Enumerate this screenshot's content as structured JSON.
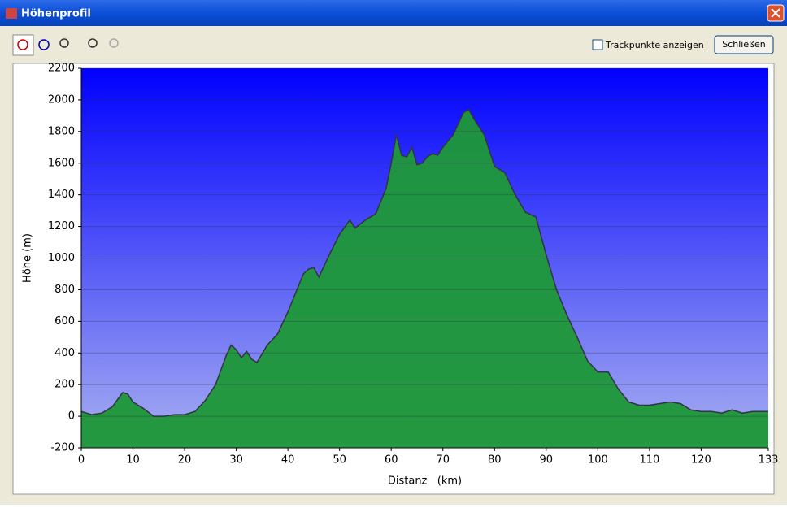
{
  "window": {
    "title": "Höhenprofil",
    "checkbox_label": "Trackpunkte anzeigen",
    "button": "Schließen"
  },
  "chart_data": {
    "type": "area",
    "x_label": "Distanz   (km)",
    "y_label": "Höhe (m)",
    "x": [
      0,
      2,
      4,
      6,
      8,
      9,
      10,
      12,
      14,
      16,
      18,
      20,
      22,
      24,
      26,
      28,
      29,
      30,
      31,
      32,
      33,
      34,
      36,
      38,
      40,
      42,
      43,
      44,
      45,
      46,
      48,
      50,
      52,
      53,
      55,
      57,
      59,
      60,
      61,
      62,
      63,
      64,
      65,
      66,
      67,
      68,
      69,
      70,
      72,
      74,
      75,
      76,
      78,
      80,
      82,
      84,
      86,
      88,
      90,
      92,
      94,
      96,
      98,
      100,
      102,
      104,
      106,
      108,
      110,
      112,
      114,
      116,
      118,
      120,
      122,
      124,
      126,
      128,
      130,
      133
    ],
    "values": [
      30,
      10,
      20,
      60,
      150,
      140,
      90,
      50,
      0,
      0,
      10,
      10,
      30,
      100,
      200,
      380,
      450,
      420,
      370,
      410,
      360,
      340,
      450,
      520,
      660,
      820,
      900,
      930,
      940,
      880,
      1020,
      1150,
      1240,
      1190,
      1240,
      1280,
      1440,
      1600,
      1780,
      1650,
      1640,
      1700,
      1590,
      1600,
      1640,
      1660,
      1650,
      1700,
      1780,
      1920,
      1940,
      1880,
      1780,
      1580,
      1540,
      1400,
      1290,
      1260,
      1020,
      800,
      640,
      500,
      350,
      280,
      280,
      170,
      90,
      70,
      70,
      80,
      90,
      80,
      40,
      30,
      30,
      20,
      40,
      20,
      30,
      30
    ],
    "color": "#1e9b3a",
    "xlim": [
      0,
      133
    ],
    "xticks": [
      0,
      10,
      20,
      30,
      40,
      50,
      60,
      70,
      80,
      90,
      100,
      110,
      120,
      133
    ],
    "ylim": [
      -200,
      2200
    ],
    "yticks": [
      -200,
      0,
      200,
      400,
      600,
      800,
      1000,
      1200,
      1400,
      1600,
      1800,
      2000,
      2200
    ],
    "grid": true
  }
}
